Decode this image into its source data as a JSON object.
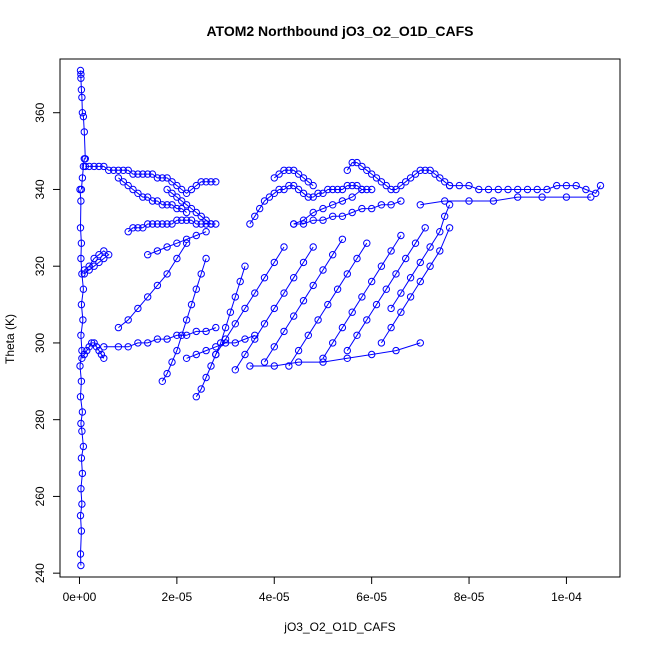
{
  "chart_data": {
    "type": "scatter",
    "title": "ATOM2 Northbound jO3_O2_O1D_CAFS",
    "xlabel": "jO3_O2_O1D_CAFS",
    "ylabel": "Theta (K)",
    "xlim": [
      -4e-06,
      0.000111
    ],
    "ylim": [
      239,
      374
    ],
    "xticks": [
      0,
      2e-05,
      4e-05,
      6e-05,
      8e-05,
      0.0001
    ],
    "xtick_labels": [
      "0e+00",
      "2e-05",
      "4e-05",
      "6e-05",
      "8e-05",
      "1e-04"
    ],
    "yticks": [
      240,
      260,
      280,
      300,
      320,
      340,
      360
    ],
    "ytick_labels": [
      "240",
      "260",
      "280",
      "300",
      "320",
      "340",
      "360"
    ],
    "grid": false,
    "color": "#0000ff",
    "marker": "open-circle",
    "connected": true,
    "series": [
      {
        "x": [
          3e-07,
          2e-07,
          4e-07,
          2e-07,
          5e-07,
          3e-07,
          6e-07,
          4e-07,
          8e-07,
          5e-07,
          3e-07,
          6e-07,
          2e-07,
          4e-07,
          1e-07,
          5e-07,
          3e-07,
          7e-07,
          4e-07,
          8e-07,
          5e-07,
          3e-07,
          4e-07,
          2e-07,
          3e-07,
          1e-07
        ],
        "y": [
          242,
          245,
          251,
          255,
          258,
          262,
          266,
          270,
          273,
          277,
          279,
          282,
          286,
          290,
          294,
          298,
          302,
          306,
          310,
          314,
          318,
          322,
          326,
          330,
          337,
          340
        ]
      },
      {
        "x": [
          4e-07,
          6e-07,
          8e-07,
          1e-06,
          1.2e-06,
          1e-06,
          8e-07,
          6e-07,
          5e-07,
          4e-07,
          3e-07,
          3e-07,
          2e-07
        ],
        "y": [
          340,
          343,
          346,
          348,
          348,
          355,
          359,
          360,
          364,
          366,
          369,
          370,
          371
        ]
      },
      {
        "x": [
          1.2e-06,
          2e-06,
          3e-06,
          4e-06,
          5e-06,
          6e-06,
          7e-06,
          8e-06,
          9e-06,
          1e-05,
          1.1e-05,
          1.2e-05,
          1.3e-05,
          1.4e-05,
          1.5e-05,
          1.6e-05,
          1.7e-05,
          1.8e-05,
          1.9e-05,
          2e-05,
          2.1e-05,
          2.2e-05,
          2.3e-05,
          2.4e-05,
          2.5e-05,
          2.6e-05,
          2.7e-05,
          2.8e-05
        ],
        "y": [
          346,
          346,
          346,
          346,
          346,
          345,
          345,
          345,
          345,
          345,
          344,
          344,
          344,
          344,
          344,
          343,
          343,
          343,
          342,
          341,
          340,
          339,
          340,
          341,
          342,
          342,
          342,
          342
        ]
      },
      {
        "x": [
          8e-06,
          9e-06,
          1e-05,
          1.1e-05,
          1.2e-05,
          1.3e-05,
          1.4e-05,
          1.5e-05,
          1.6e-05,
          1.7e-05,
          1.8e-05,
          1.9e-05,
          2e-05,
          2.1e-05,
          2.2e-05
        ],
        "y": [
          343,
          342,
          341,
          340,
          339,
          338,
          338,
          337,
          337,
          336,
          336,
          336,
          335,
          335,
          334
        ]
      },
      {
        "x": [
          1e-05,
          1.1e-05,
          1.2e-05,
          1.3e-05,
          1.4e-05,
          1.5e-05,
          1.6e-05,
          1.7e-05,
          1.8e-05,
          1.9e-05,
          2e-05,
          2.1e-05,
          2.2e-05,
          2.3e-05,
          2.4e-05,
          2.5e-05,
          2.6e-05,
          2.7e-05,
          2.8e-05
        ],
        "y": [
          329,
          330,
          330,
          330,
          331,
          331,
          331,
          331,
          331,
          331,
          332,
          332,
          332,
          332,
          331,
          331,
          331,
          331,
          331
        ]
      },
      {
        "x": [
          1.8e-05,
          1.9e-05,
          2e-05,
          2.1e-05,
          2.2e-05,
          2.3e-05,
          2.4e-05,
          2.5e-05,
          2.6e-05,
          2.7e-05
        ],
        "y": [
          340,
          339,
          338,
          337,
          336,
          335,
          334,
          333,
          332,
          331
        ]
      },
      {
        "x": [
          3.5e-05,
          3.6e-05,
          3.7e-05,
          3.8e-05,
          3.9e-05,
          4e-05,
          4.1e-05,
          4.2e-05,
          4.3e-05,
          4.4e-05,
          4.5e-05,
          4.6e-05,
          4.7e-05,
          4.8e-05,
          4.9e-05,
          5e-05,
          5.1e-05,
          5.2e-05,
          5.3e-05,
          5.4e-05,
          5.5e-05,
          5.6e-05,
          5.7e-05,
          5.8e-05,
          5.9e-05,
          6e-05
        ],
        "y": [
          331,
          333,
          335,
          337,
          338,
          339,
          340,
          340,
          341,
          341,
          340,
          339,
          338,
          338,
          339,
          339,
          340,
          340,
          340,
          340,
          341,
          341,
          341,
          340,
          340,
          340
        ]
      },
      {
        "x": [
          4e-05,
          4.1e-05,
          4.2e-05,
          4.3e-05,
          4.4e-05,
          4.5e-05,
          4.6e-05,
          4.7e-05,
          4.8e-05
        ],
        "y": [
          343,
          344,
          345,
          345,
          345,
          344,
          343,
          342,
          341
        ]
      },
      {
        "x": [
          5.5e-05,
          5.6e-05,
          5.7e-05,
          5.8e-05,
          5.9e-05,
          6e-05,
          6.1e-05,
          6.2e-05,
          6.3e-05,
          6.4e-05,
          6.5e-05,
          6.6e-05,
          6.7e-05,
          6.8e-05,
          6.9e-05,
          7e-05,
          7.1e-05,
          7.2e-05,
          7.3e-05,
          7.4e-05,
          7.5e-05,
          7.6e-05
        ],
        "y": [
          345,
          347,
          347,
          346,
          345,
          344,
          343,
          342,
          341,
          340,
          340,
          341,
          342,
          343,
          344,
          345,
          345,
          345,
          344,
          343,
          342,
          341
        ]
      },
      {
        "x": [
          7.6e-05,
          7.8e-05,
          8e-05,
          8.2e-05,
          8.4e-05,
          8.6e-05,
          8.8e-05,
          9e-05,
          9.2e-05,
          9.4e-05,
          9.6e-05,
          9.8e-05,
          0.0001,
          0.000102,
          0.000104,
          0.000106,
          0.000107
        ],
        "y": [
          341,
          341,
          341,
          340,
          340,
          340,
          340,
          340,
          340,
          340,
          340,
          341,
          341,
          341,
          340,
          339,
          341
        ]
      },
      {
        "x": [
          7e-05,
          7.5e-05,
          8e-05,
          8.5e-05,
          9e-05,
          9.5e-05,
          0.0001,
          0.000105
        ],
        "y": [
          336,
          337,
          337,
          337,
          338,
          338,
          338,
          338
        ]
      },
      {
        "x": [
          4.4e-05,
          4.6e-05,
          4.8e-05,
          5e-05,
          5.2e-05,
          5.4e-05,
          5.6e-05,
          5.8e-05,
          6e-05,
          6.2e-05,
          6.4e-05,
          6.6e-05
        ],
        "y": [
          331,
          331,
          332,
          332,
          333,
          333,
          334,
          335,
          335,
          336,
          336,
          337
        ]
      },
      {
        "x": [
          1e-06,
          2e-06,
          3e-06,
          4e-06,
          5e-06,
          6e-06,
          5e-06,
          4e-06,
          3e-06,
          2e-06,
          1e-06
        ],
        "y": [
          318,
          319,
          320,
          321,
          322,
          323,
          324,
          323,
          322,
          320,
          319
        ]
      },
      {
        "x": [
          5e-07,
          1e-06,
          1.5e-06,
          2e-06,
          2.5e-06,
          3e-06,
          3.5e-06,
          4e-06,
          4.5e-06,
          5e-06
        ],
        "y": [
          296,
          297,
          298,
          299,
          300,
          300,
          299,
          298,
          297,
          296
        ]
      },
      {
        "x": [
          5e-06,
          8e-06,
          1e-05,
          1.2e-05,
          1.4e-05,
          1.6e-05,
          1.8e-05,
          2e-05,
          2.2e-05,
          2.4e-05,
          2.6e-05,
          2.8e-05
        ],
        "y": [
          299,
          299,
          299,
          300,
          300,
          301,
          301,
          302,
          302,
          303,
          303,
          304
        ]
      },
      {
        "x": [
          8e-06,
          1e-05,
          1.2e-05,
          1.4e-05,
          1.6e-05,
          1.8e-05,
          2e-05,
          2.2e-05
        ],
        "y": [
          304,
          306,
          309,
          312,
          315,
          318,
          322,
          326
        ]
      },
      {
        "x": [
          1.7e-05,
          1.8e-05,
          1.9e-05,
          2e-05,
          2.1e-05,
          2.2e-05,
          2.3e-05,
          2.4e-05,
          2.5e-05,
          2.6e-05
        ],
        "y": [
          290,
          292,
          295,
          298,
          302,
          306,
          310,
          314,
          318,
          322
        ]
      },
      {
        "x": [
          2.4e-05,
          2.5e-05,
          2.6e-05,
          2.7e-05,
          2.8e-05,
          2.9e-05,
          3e-05,
          3.1e-05,
          3.2e-05,
          3.3e-05,
          3.4e-05
        ],
        "y": [
          286,
          288,
          291,
          294,
          297,
          300,
          304,
          308,
          312,
          316,
          320
        ]
      },
      {
        "x": [
          2.8e-05,
          3e-05,
          3.2e-05,
          3.4e-05,
          3.6e-05,
          3.8e-05,
          4e-05,
          4.2e-05
        ],
        "y": [
          297,
          301,
          305,
          309,
          313,
          317,
          321,
          325
        ]
      },
      {
        "x": [
          3.2e-05,
          3.4e-05,
          3.6e-05,
          3.8e-05,
          4e-05,
          4.2e-05,
          4.4e-05,
          4.6e-05,
          4.8e-05
        ],
        "y": [
          293,
          297,
          301,
          305,
          309,
          313,
          317,
          321,
          325
        ]
      },
      {
        "x": [
          3.8e-05,
          4e-05,
          4.2e-05,
          4.4e-05,
          4.6e-05,
          4.8e-05,
          5e-05,
          5.2e-05,
          5.4e-05
        ],
        "y": [
          295,
          299,
          303,
          307,
          311,
          315,
          319,
          323,
          327
        ]
      },
      {
        "x": [
          4.3e-05,
          4.5e-05,
          4.7e-05,
          4.9e-05,
          5.1e-05,
          5.3e-05,
          5.5e-05,
          5.7e-05,
          5.9e-05
        ],
        "y": [
          294,
          298,
          302,
          306,
          310,
          314,
          318,
          322,
          326
        ]
      },
      {
        "x": [
          5e-05,
          5.2e-05,
          5.4e-05,
          5.6e-05,
          5.8e-05,
          6e-05,
          6.2e-05,
          6.4e-05,
          6.6e-05
        ],
        "y": [
          296,
          300,
          304,
          308,
          312,
          316,
          320,
          324,
          328
        ]
      },
      {
        "x": [
          5.5e-05,
          5.7e-05,
          5.9e-05,
          6.1e-05,
          6.3e-05,
          6.5e-05,
          6.7e-05,
          6.9e-05,
          7.1e-05
        ],
        "y": [
          298,
          302,
          306,
          310,
          314,
          318,
          322,
          326,
          330
        ]
      },
      {
        "x": [
          6.2e-05,
          6.4e-05,
          6.6e-05,
          6.8e-05,
          7e-05,
          7.2e-05,
          7.4e-05,
          7.6e-05
        ],
        "y": [
          300,
          304,
          308,
          312,
          316,
          320,
          324,
          330
        ]
      },
      {
        "x": [
          6.4e-05,
          6.6e-05,
          6.8e-05,
          7e-05,
          7.2e-05,
          7.4e-05,
          7.5e-05,
          7.6e-05
        ],
        "y": [
          309,
          313,
          317,
          321,
          325,
          329,
          333,
          336
        ]
      },
      {
        "x": [
          3.5e-05,
          4e-05,
          4.5e-05,
          5e-05,
          5.5e-05,
          6e-05,
          6.5e-05,
          7e-05
        ],
        "y": [
          294,
          294,
          295,
          295,
          296,
          297,
          298,
          300
        ]
      },
      {
        "x": [
          2.2e-05,
          2.4e-05,
          2.6e-05,
          2.8e-05,
          3e-05,
          3.2e-05,
          3.4e-05,
          3.6e-05
        ],
        "y": [
          296,
          297,
          298,
          299,
          300,
          300,
          301,
          302
        ]
      },
      {
        "x": [
          1.4e-05,
          1.6e-05,
          1.8e-05,
          2e-05,
          2.2e-05,
          2.4e-05,
          2.6e-05
        ],
        "y": [
          323,
          324,
          325,
          326,
          327,
          328,
          329
        ]
      },
      {
        "x": [
          4.4e-05,
          4.6e-05,
          4.8e-05,
          5e-05,
          5.2e-05,
          5.4e-05,
          5.6e-05,
          5.8e-05
        ],
        "y": [
          331,
          332,
          334,
          335,
          336,
          337,
          338,
          340
        ]
      }
    ]
  }
}
